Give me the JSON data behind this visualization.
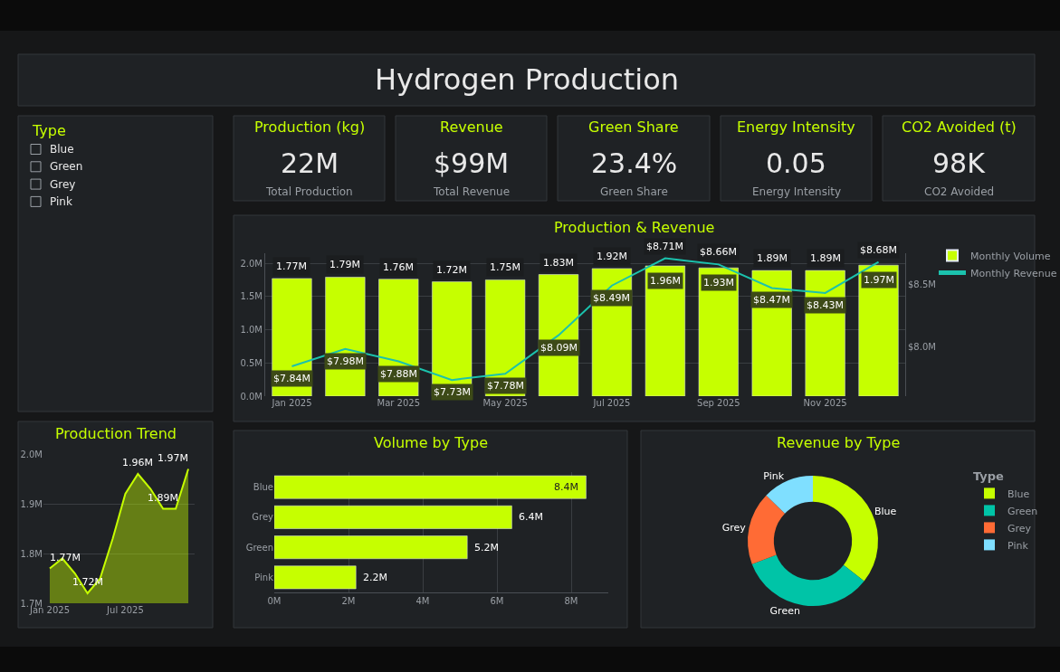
{
  "chart_data": [
    {
      "type": "other",
      "title": "Hydrogen Production"
    },
    {
      "type": "other",
      "title": "Type",
      "annotations": [
        "Blue",
        "Green",
        "Grey",
        "Pink"
      ]
    },
    {
      "type": "other",
      "title": "Production (kg)",
      "annotations": [
        "22M",
        "Total Production"
      ]
    },
    {
      "type": "other",
      "title": "Revenue",
      "annotations": [
        "$99M",
        "Total Revenue"
      ]
    },
    {
      "type": "other",
      "title": "Green Share",
      "annotations": [
        "23.4%",
        "Green Share"
      ]
    },
    {
      "type": "other",
      "title": "Energy Intensity",
      "annotations": [
        "0.05",
        "Energy Intensity"
      ]
    },
    {
      "type": "other",
      "title": "CO2 Avoided (t)",
      "annotations": [
        "98K",
        "CO2 Avoided"
      ]
    },
    {
      "type": "bar",
      "title": "Production & Revenue",
      "categories": [
        "Jan 2025",
        null,
        "Mar 2025",
        null,
        "May 2025",
        null,
        "Jul 2025",
        null,
        "Sep 2025",
        null,
        "Nov 2025",
        null
      ],
      "series": [
        {
          "name": "Monthly Volume",
          "color": "#c6ff00",
          "values": [
            1.77,
            1.79,
            1.76,
            1.72,
            1.75,
            1.83,
            1.92,
            1.96,
            1.93,
            1.89,
            1.89,
            1.97
          ],
          "value_labels": [
            "1.77M",
            "1.79M",
            "1.76M",
            "1.72M",
            "1.75M",
            "1.83M",
            "1.92M",
            "1.96M",
            "1.93M",
            "1.89M",
            "1.89M",
            "1.97M"
          ]
        },
        {
          "name": "Monthly Revenue",
          "type": "line",
          "axis": "y2",
          "color": "#1bc2ad",
          "values": [
            7.84,
            7.98,
            7.88,
            7.73,
            7.78,
            8.09,
            8.49,
            8.71,
            8.66,
            8.47,
            8.43,
            8.68
          ],
          "value_labels": [
            "$7.84M",
            "$7.98M",
            "$7.88M",
            "$7.73M",
            "$7.78M",
            "$8.09M",
            "$8.49M",
            "$8.71M",
            "$8.66M",
            "$8.47M",
            "$8.43M",
            "$8.68M"
          ]
        }
      ],
      "ylim": [
        0,
        2.15
      ],
      "yticks": [
        {
          "value": 0,
          "label": "0.0M"
        },
        {
          "value": 0.5,
          "label": "0.5M"
        },
        {
          "value": 1.0,
          "label": "1.0M"
        },
        {
          "value": 1.5,
          "label": "1.5M"
        },
        {
          "value": 2.0,
          "label": "2.0M"
        }
      ],
      "y2lim": [
        7.6,
        8.75
      ],
      "y2ticks": [
        {
          "value": 8.0,
          "label": "$8.0M"
        },
        {
          "value": 8.5,
          "label": "$8.5M"
        }
      ],
      "grid": "y",
      "legend": "top right"
    },
    {
      "type": "area",
      "title": "Production Trend",
      "categories": [
        "Jan 2025",
        null,
        null,
        null,
        null,
        null,
        "Jul 2025",
        null,
        null,
        null,
        null,
        null
      ],
      "values": [
        1.77,
        1.79,
        1.76,
        1.72,
        1.75,
        1.83,
        1.92,
        1.96,
        1.93,
        1.89,
        1.89,
        1.97
      ],
      "value_labels": [
        "1.77M",
        null,
        null,
        "1.72M",
        null,
        null,
        null,
        "1.96M",
        null,
        "1.89M",
        null,
        "1.97M"
      ],
      "color": "#c6ff00",
      "ylim": [
        1.7,
        2.0
      ],
      "yticks": [
        {
          "value": 1.7,
          "label": "1.7M"
        },
        {
          "value": 1.8,
          "label": "1.8M"
        },
        {
          "value": 1.9,
          "label": "1.9M"
        },
        {
          "value": 2.0,
          "label": "2.0M"
        }
      ],
      "grid": "y"
    },
    {
      "type": "bar",
      "title": "Volume by Type",
      "orientation": "horizontal",
      "categories": [
        "Blue",
        "Grey",
        "Green",
        "Pink"
      ],
      "values": [
        8.4,
        6.4,
        5.2,
        2.2
      ],
      "value_labels": [
        "8.4M",
        "6.4M",
        "5.2M",
        "2.2M"
      ],
      "color": "#c6ff00",
      "xlim": [
        0,
        9
      ],
      "xticks": [
        {
          "value": 0,
          "label": "0M"
        },
        {
          "value": 2,
          "label": "2M"
        },
        {
          "value": 4,
          "label": "4M"
        },
        {
          "value": 6,
          "label": "6M"
        },
        {
          "value": 8,
          "label": "8M"
        }
      ],
      "grid": "x"
    },
    {
      "type": "donut",
      "title": "Revenue by Type",
      "categories": [
        "Blue",
        "Green",
        "Grey",
        "Pink"
      ],
      "values": [
        35.6,
        33.6,
        18.1,
        12.7
      ],
      "colors": [
        "#c6ff00",
        "#00c4a7",
        "#ff6b35",
        "#7fdfff"
      ],
      "legend_title": "Type",
      "legend": "top right"
    }
  ]
}
